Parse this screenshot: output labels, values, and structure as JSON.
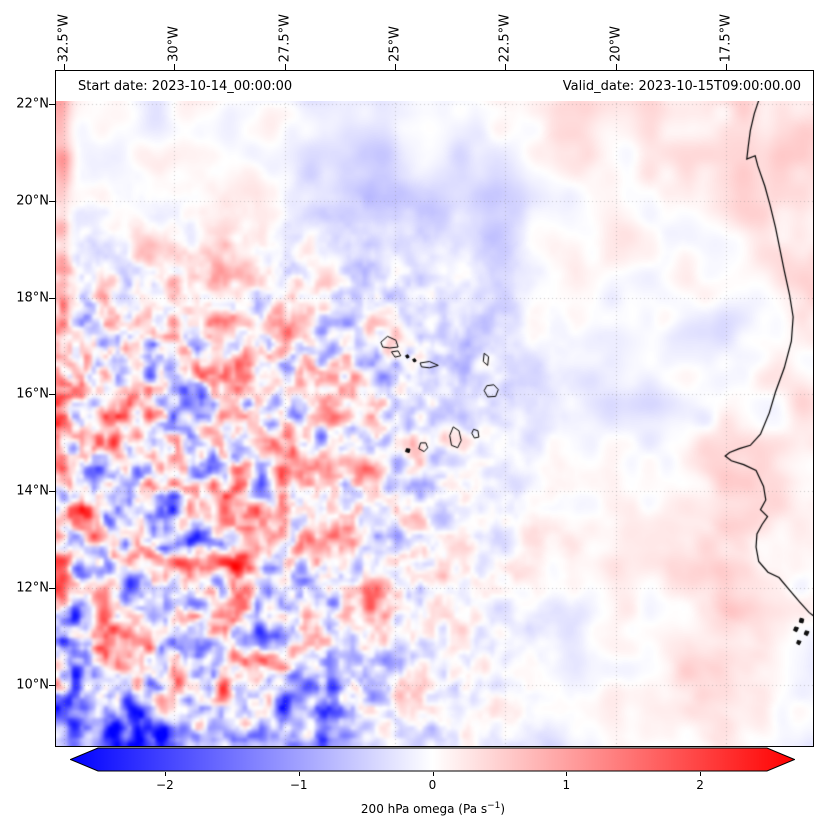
{
  "header": {
    "start_date_label": "Start date: 2023-10-14_00:00:00",
    "valid_date_label": "Valid_date: 2023-10-15T09:00:00.00"
  },
  "axes": {
    "top_ticks": [
      {
        "label": "32.5°W",
        "lon": -32.5
      },
      {
        "label": "30°W",
        "lon": -30
      },
      {
        "label": "27.5°W",
        "lon": -27.5
      },
      {
        "label": "25°W",
        "lon": -25
      },
      {
        "label": "22.5°W",
        "lon": -22.5
      },
      {
        "label": "20°W",
        "lon": -20
      },
      {
        "label": "17.5°W",
        "lon": -17.5
      }
    ],
    "left_ticks": [
      {
        "label": "22°N",
        "lat": 22
      },
      {
        "label": "20°N",
        "lat": 20
      },
      {
        "label": "18°N",
        "lat": 18
      },
      {
        "label": "16°N",
        "lat": 16
      },
      {
        "label": "14°N",
        "lat": 14
      },
      {
        "label": "12°N",
        "lat": 12
      },
      {
        "label": "10°N",
        "lat": 10
      }
    ],
    "grid_color": "rgba(130,130,130,0.55)"
  },
  "colorbar": {
    "ticks": [
      {
        "label": "−2",
        "value": -2
      },
      {
        "label": "−1",
        "value": -1
      },
      {
        "label": "0",
        "value": 0
      },
      {
        "label": "1",
        "value": 1
      },
      {
        "label": "2",
        "value": 2
      }
    ],
    "vmin": -2.5,
    "vmax": 2.5,
    "extend": "both",
    "label_prefix": "200 hPa omega (Pa s",
    "label_sup": "−1",
    "label_suffix": ")",
    "colors": {
      "negative": "#0000ff",
      "zero": "#ffffff",
      "positive": "#ff0000"
    }
  },
  "chart_data": {
    "type": "heatmap",
    "variable": "200 hPa omega",
    "units": "Pa s−1",
    "colormap": "bwr",
    "vmin": -2.5,
    "vmax": 2.5,
    "colorbar_tick_values": [
      -2,
      -1,
      0,
      1,
      2
    ],
    "colorbar_extend": "both",
    "x_axis": {
      "name": "longitude",
      "tick_values": [
        -32.5,
        -30,
        -27.5,
        -25,
        -22.5,
        -20,
        -17.5
      ],
      "tick_labels": [
        "32.5°W",
        "30°W",
        "27.5°W",
        "25°W",
        "22.5°W",
        "20°W",
        "17.5°W"
      ],
      "range_deg_east": [
        -32.7,
        -15.5
      ]
    },
    "y_axis": {
      "name": "latitude",
      "tick_values": [
        22,
        20,
        18,
        16,
        14,
        12,
        10
      ],
      "tick_labels": [
        "22°N",
        "20°N",
        "18°N",
        "16°N",
        "14°N",
        "12°N",
        "10°N"
      ],
      "range_deg_north": [
        8.7,
        22.7
      ]
    },
    "start_date": "2023-10-14_00:00:00",
    "valid_date": "2023-10-15T09:00:00.00",
    "grid": "dotted gray graticule at tick positions",
    "pattern_summary": [
      "High-amplitude small-scale red/blue convective cells west of about 24°W between 9°N and 18°N, strongest near 32–26°W",
      "Narrow red (positive omega) band along the far western edge of the domain",
      "Dark blue (strong ascent) blobs in the bottom-left corner near 31°W 9°N and along the left edge below 11°N",
      "Smooth pale blue region east of 23°W between 14°N and 19°N",
      "Pale pink region in the upper right (north of 20°N east of 22°W) and pink streaks near the African coast south of 15°N",
      "Additional blue blob near 27°W at the bottom edge"
    ],
    "overlays": [
      "West African coastline (Western Sahara to Guinea-Bissau, incl. Dakar peninsula and Bijagós islets)",
      "Cape Verde archipelago outlines"
    ]
  },
  "map": {
    "coastline": [
      [
        -16.55,
        22.68
      ],
      [
        -16.62,
        22.4
      ],
      [
        -16.75,
        22.1
      ],
      [
        -16.86,
        21.8
      ],
      [
        -16.95,
        21.45
      ],
      [
        -17.0,
        21.1
      ],
      [
        -17.03,
        20.86
      ],
      [
        -16.84,
        20.93
      ],
      [
        -16.78,
        20.72
      ],
      [
        -16.62,
        20.3
      ],
      [
        -16.5,
        19.9
      ],
      [
        -16.38,
        19.45
      ],
      [
        -16.28,
        19.0
      ],
      [
        -16.18,
        18.55
      ],
      [
        -16.06,
        18.05
      ],
      [
        -15.98,
        17.6
      ],
      [
        -16.02,
        17.1
      ],
      [
        -16.18,
        16.55
      ],
      [
        -16.38,
        16.05
      ],
      [
        -16.52,
        15.62
      ],
      [
        -16.72,
        15.18
      ],
      [
        -16.95,
        14.95
      ],
      [
        -17.2,
        14.88
      ],
      [
        -17.42,
        14.8
      ],
      [
        -17.52,
        14.73
      ],
      [
        -17.38,
        14.63
      ],
      [
        -17.1,
        14.55
      ],
      [
        -16.82,
        14.43
      ],
      [
        -16.65,
        14.1
      ],
      [
        -16.6,
        13.82
      ],
      [
        -16.72,
        13.62
      ],
      [
        -16.56,
        13.48
      ],
      [
        -16.68,
        13.32
      ],
      [
        -16.8,
        13.12
      ],
      [
        -16.82,
        12.85
      ],
      [
        -16.76,
        12.55
      ],
      [
        -16.55,
        12.33
      ],
      [
        -16.3,
        12.22
      ],
      [
        -16.08,
        11.98
      ],
      [
        -15.84,
        11.72
      ],
      [
        -15.62,
        11.5
      ],
      [
        -15.48,
        11.4
      ]
    ],
    "islands": [
      {
        "name": "Santo Antão",
        "fill": false,
        "points": [
          [
            -25.32,
            17.08
          ],
          [
            -25.17,
            17.2
          ],
          [
            -24.98,
            17.12
          ],
          [
            -24.93,
            16.98
          ],
          [
            -25.12,
            16.96
          ],
          [
            -25.28,
            16.98
          ]
        ]
      },
      {
        "name": "São Vicente",
        "fill": false,
        "points": [
          [
            -25.08,
            16.88
          ],
          [
            -24.93,
            16.9
          ],
          [
            -24.87,
            16.8
          ],
          [
            -25.0,
            16.77
          ]
        ]
      },
      {
        "name": "Santa Luzia",
        "fill": true,
        "points": [
          [
            -24.76,
            16.8
          ],
          [
            -24.71,
            16.82
          ],
          [
            -24.68,
            16.77
          ],
          [
            -24.73,
            16.75
          ]
        ]
      },
      {
        "name": "Branco",
        "fill": true,
        "points": [
          [
            -24.6,
            16.72
          ],
          [
            -24.55,
            16.74
          ],
          [
            -24.52,
            16.69
          ],
          [
            -24.57,
            16.67
          ]
        ]
      },
      {
        "name": "São Nicolau",
        "fill": false,
        "points": [
          [
            -24.43,
            16.65
          ],
          [
            -24.22,
            16.68
          ],
          [
            -24.02,
            16.6
          ],
          [
            -24.22,
            16.55
          ],
          [
            -24.4,
            16.57
          ]
        ]
      },
      {
        "name": "Sal",
        "fill": false,
        "points": [
          [
            -22.98,
            16.85
          ],
          [
            -22.88,
            16.78
          ],
          [
            -22.9,
            16.6
          ],
          [
            -23.0,
            16.68
          ]
        ]
      },
      {
        "name": "Boa Vista",
        "fill": false,
        "points": [
          [
            -22.92,
            16.18
          ],
          [
            -22.76,
            16.2
          ],
          [
            -22.66,
            16.1
          ],
          [
            -22.72,
            15.96
          ],
          [
            -22.9,
            15.95
          ],
          [
            -22.98,
            16.08
          ]
        ]
      },
      {
        "name": "Maio",
        "fill": false,
        "points": [
          [
            -23.22,
            15.28
          ],
          [
            -23.12,
            15.25
          ],
          [
            -23.1,
            15.12
          ],
          [
            -23.2,
            15.1
          ],
          [
            -23.26,
            15.2
          ]
        ]
      },
      {
        "name": "Santiago",
        "fill": false,
        "points": [
          [
            -23.68,
            15.33
          ],
          [
            -23.55,
            15.25
          ],
          [
            -23.5,
            15.05
          ],
          [
            -23.58,
            14.9
          ],
          [
            -23.72,
            14.95
          ],
          [
            -23.76,
            15.15
          ]
        ]
      },
      {
        "name": "Fogo",
        "fill": false,
        "points": [
          [
            -24.42,
            15.0
          ],
          [
            -24.3,
            15.0
          ],
          [
            -24.26,
            14.9
          ],
          [
            -24.34,
            14.82
          ],
          [
            -24.46,
            14.88
          ]
        ]
      },
      {
        "name": "Brava",
        "fill": true,
        "points": [
          [
            -24.74,
            14.88
          ],
          [
            -24.66,
            14.87
          ],
          [
            -24.68,
            14.8
          ],
          [
            -24.76,
            14.82
          ]
        ]
      },
      {
        "name": "Bijagós-1",
        "fill": true,
        "points": [
          [
            -15.82,
            11.38
          ],
          [
            -15.74,
            11.36
          ],
          [
            -15.76,
            11.28
          ],
          [
            -15.84,
            11.3
          ]
        ]
      },
      {
        "name": "Bijagós-2",
        "fill": true,
        "points": [
          [
            -15.94,
            11.2
          ],
          [
            -15.86,
            11.18
          ],
          [
            -15.9,
            11.1
          ],
          [
            -15.97,
            11.13
          ]
        ]
      },
      {
        "name": "Bijagós-3",
        "fill": true,
        "points": [
          [
            -15.7,
            11.12
          ],
          [
            -15.62,
            11.1
          ],
          [
            -15.66,
            11.02
          ],
          [
            -15.73,
            11.05
          ]
        ]
      },
      {
        "name": "Bijagós-4",
        "fill": true,
        "points": [
          [
            -15.88,
            10.92
          ],
          [
            -15.8,
            10.9
          ],
          [
            -15.84,
            10.83
          ],
          [
            -15.9,
            10.86
          ]
        ]
      }
    ]
  }
}
